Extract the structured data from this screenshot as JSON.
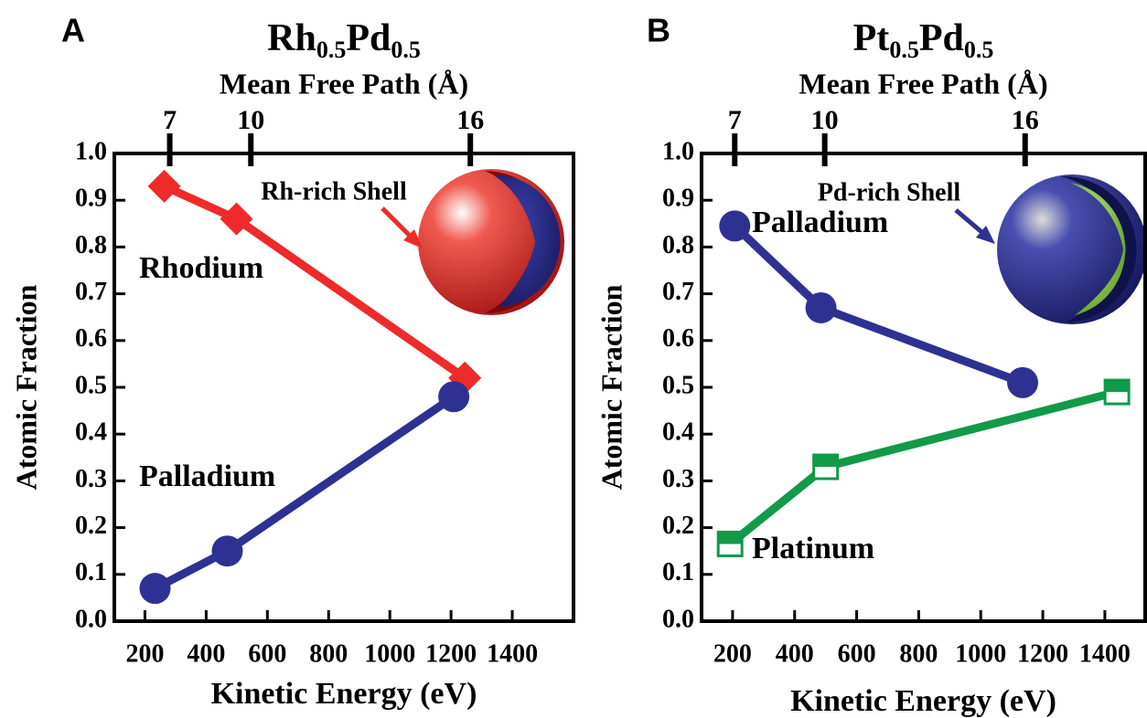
{
  "chart_data": [
    {
      "type": "line",
      "panel_label": "A",
      "title": [
        "Rh",
        "0.5",
        "Pd",
        "0.5"
      ],
      "x2label": "Mean Free Path (Å)",
      "xlabel": "Kinetic Energy (eV)",
      "ylabel": "Atomic Fraction",
      "xlim": [
        100,
        1600
      ],
      "ylim": [
        0,
        1
      ],
      "xticks": [
        200,
        400,
        600,
        800,
        1000,
        1200,
        1400
      ],
      "x2ticks": [
        {
          "value": 281,
          "label": "7"
        },
        {
          "value": 546,
          "label": "10"
        },
        {
          "value": 1263,
          "label": "16"
        }
      ],
      "yticks": [
        {
          "value": 0,
          "label": "0.0"
        },
        {
          "value": 0.1,
          "label": "0.1"
        },
        {
          "value": 0.2,
          "label": "0.2"
        },
        {
          "value": 0.3,
          "label": "0.3"
        },
        {
          "value": 0.4,
          "label": "0.4"
        },
        {
          "value": 0.5,
          "label": "0.5"
        },
        {
          "value": 0.6,
          "label": "0.6"
        },
        {
          "value": 0.7,
          "label": "0.7"
        },
        {
          "value": 0.8,
          "label": "0.8"
        },
        {
          "value": 0.9,
          "label": "0.9"
        },
        {
          "value": 1,
          "label": "1.0"
        }
      ],
      "annotation": "Rh-rich Shell",
      "series": [
        {
          "name": "Rhodium",
          "color": "#ee2a2a",
          "marker": "diamond",
          "x": [
            263,
            499,
            1245
          ],
          "values": [
            0.93,
            0.86,
            0.52
          ]
        },
        {
          "name": "Palladium",
          "color": "#2e3192",
          "marker": "circle",
          "x": [
            233,
            469,
            1209
          ],
          "values": [
            0.07,
            0.15,
            0.48
          ]
        }
      ]
    },
    {
      "type": "line",
      "panel_label": "B",
      "title": [
        "Pt",
        "0.5",
        "Pd",
        "0.5"
      ],
      "x2label": "Mean Free Path (Å)",
      "xlabel": "Kinetic Energy (eV)",
      "ylabel": "Atomic Fraction",
      "xlim": [
        100,
        1530
      ],
      "ylim": [
        0,
        1
      ],
      "xticks": [
        200,
        400,
        600,
        800,
        1000,
        1200,
        1400
      ],
      "x2ticks": [
        {
          "value": 207,
          "label": "7"
        },
        {
          "value": 497,
          "label": "10"
        },
        {
          "value": 1143,
          "label": "16"
        }
      ],
      "yticks": [
        {
          "value": 0,
          "label": "0.0"
        },
        {
          "value": 0.1,
          "label": "0.1"
        },
        {
          "value": 0.2,
          "label": "0.2"
        },
        {
          "value": 0.3,
          "label": "0.3"
        },
        {
          "value": 0.4,
          "label": "0.4"
        },
        {
          "value": 0.5,
          "label": "0.5"
        },
        {
          "value": 0.6,
          "label": "0.6"
        },
        {
          "value": 0.7,
          "label": "0.7"
        },
        {
          "value": 0.8,
          "label": "0.8"
        },
        {
          "value": 0.9,
          "label": "0.9"
        },
        {
          "value": 1,
          "label": "1.0"
        }
      ],
      "annotation": "Pd-rich Shell",
      "series": [
        {
          "name": "Palladium",
          "color": "#2e3192",
          "marker": "circle",
          "x": [
            207,
            485,
            1135
          ],
          "values": [
            0.845,
            0.67,
            0.51
          ]
        },
        {
          "name": "Platinum",
          "color": "#119a48",
          "marker": "halfsquare",
          "x": [
            192,
            500,
            1439
          ],
          "values": [
            0.165,
            0.33,
            0.49
          ]
        }
      ]
    }
  ]
}
